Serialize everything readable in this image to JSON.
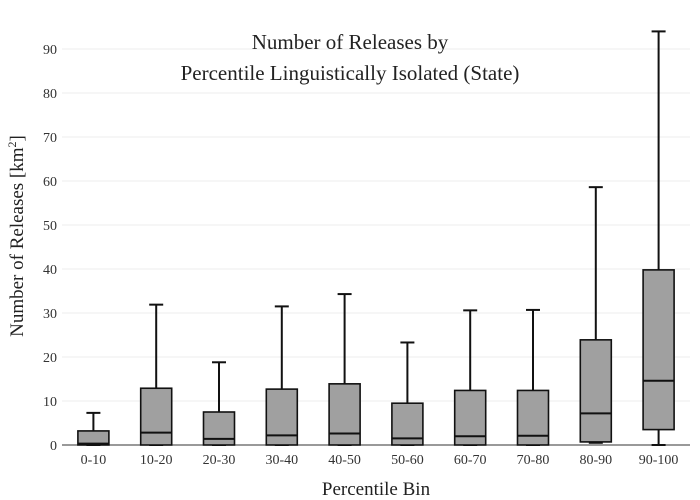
{
  "chart_data": {
    "type": "box",
    "title_lines": [
      "Number of Releases by",
      "Percentile Linguistically Isolated (State)"
    ],
    "xlabel": "Percentile Bin",
    "ylabel_main": "Number of Releases  [km",
    "ylabel_sup": "2",
    "ylabel_end": "]",
    "ylim": [
      0,
      95
    ],
    "yticks": [
      0,
      10,
      20,
      30,
      40,
      50,
      60,
      70,
      80,
      90
    ],
    "grid": true,
    "colors": {
      "box_fill": "#a0a0a0",
      "line": "#111111",
      "grid": "#ececec"
    },
    "categories": [
      "0-10",
      "10-20",
      "20-30",
      "30-40",
      "40-50",
      "50-60",
      "60-70",
      "70-80",
      "80-90",
      "90-100"
    ],
    "boxes": [
      {
        "min": 0,
        "q1": 0,
        "median": 0.3,
        "q3": 3.2,
        "max": 7.3
      },
      {
        "min": 0,
        "q1": 0,
        "median": 2.8,
        "q3": 12.9,
        "max": 31.9
      },
      {
        "min": 0,
        "q1": 0,
        "median": 1.4,
        "q3": 7.5,
        "max": 18.8
      },
      {
        "min": 0,
        "q1": 0,
        "median": 2.2,
        "q3": 12.7,
        "max": 31.5
      },
      {
        "min": 0,
        "q1": 0,
        "median": 2.6,
        "q3": 13.9,
        "max": 34.3
      },
      {
        "min": 0,
        "q1": 0,
        "median": 1.5,
        "q3": 9.5,
        "max": 23.3
      },
      {
        "min": 0,
        "q1": 0,
        "median": 2.0,
        "q3": 12.4,
        "max": 30.6
      },
      {
        "min": 0,
        "q1": 0,
        "median": 2.1,
        "q3": 12.4,
        "max": 30.7
      },
      {
        "min": 0.5,
        "q1": 0.7,
        "median": 7.2,
        "q3": 23.9,
        "max": 58.6
      },
      {
        "min": 0,
        "q1": 3.5,
        "median": 14.6,
        "q3": 39.8,
        "max": 94.0
      }
    ]
  }
}
